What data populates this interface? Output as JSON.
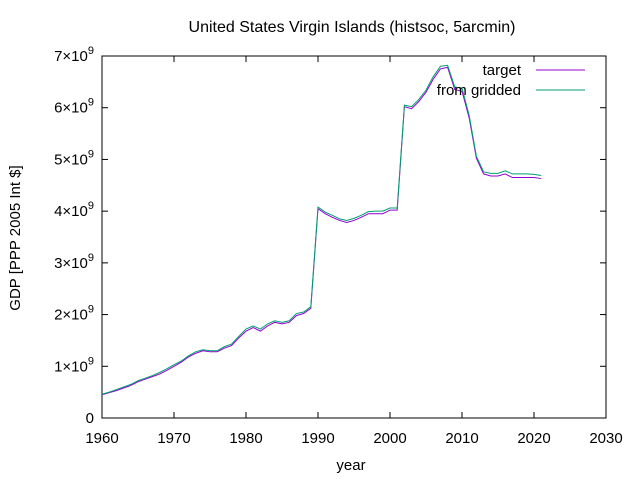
{
  "chart_data": {
    "type": "line",
    "title": "United States Virgin Islands (histsoc, 5arcmin)",
    "xlabel": "year",
    "ylabel": "GDP [PPP 2005 Int $]",
    "xlim": [
      1960,
      2030
    ],
    "ylim": [
      0,
      7000000000
    ],
    "xticks": [
      "1960",
      "1970",
      "1980",
      "1990",
      "2000",
      "2010",
      "2020",
      "2030"
    ],
    "yticks": [
      "0",
      "1×10^9",
      "2×10^9",
      "3×10^9",
      "4×10^9",
      "5×10^9",
      "6×10^9",
      "7×10^9"
    ],
    "legend_position": "top-right",
    "grid": false,
    "x": [
      1960,
      1961,
      1962,
      1963,
      1964,
      1965,
      1966,
      1967,
      1968,
      1969,
      1970,
      1971,
      1972,
      1973,
      1974,
      1975,
      1976,
      1977,
      1978,
      1979,
      1980,
      1981,
      1982,
      1983,
      1984,
      1985,
      1986,
      1987,
      1988,
      1989,
      1990,
      1991,
      1992,
      1993,
      1994,
      1995,
      1996,
      1997,
      1998,
      1999,
      2000,
      2001,
      2002,
      2003,
      2004,
      2005,
      2006,
      2007,
      2008,
      2009,
      2010,
      2011,
      2012,
      2013,
      2014,
      2015,
      2016,
      2017,
      2018,
      2019,
      2020,
      2021
    ],
    "series": [
      {
        "name": "target",
        "color": "#9400d3",
        "values": [
          450000000.0,
          490000000.0,
          530000000.0,
          580000000.0,
          630000000.0,
          700000000.0,
          750000000.0,
          800000000.0,
          850000000.0,
          920000000.0,
          1000000000.0,
          1080000000.0,
          1180000000.0,
          1250000000.0,
          1300000000.0,
          1280000000.0,
          1280000000.0,
          1350000000.0,
          1400000000.0,
          1550000000.0,
          1680000000.0,
          1750000000.0,
          1680000000.0,
          1780000000.0,
          1850000000.0,
          1820000000.0,
          1850000000.0,
          1980000000.0,
          2020000000.0,
          2120000000.0,
          4050000000.0,
          3950000000.0,
          3880000000.0,
          3820000000.0,
          3780000000.0,
          3820000000.0,
          3880000000.0,
          3950000000.0,
          3950000000.0,
          3950000000.0,
          4020000000.0,
          4020000000.0,
          6020000000.0,
          5980000000.0,
          6120000000.0,
          6300000000.0,
          6550000000.0,
          6750000000.0,
          6780000000.0,
          6350000000.0,
          6320000000.0,
          5800000000.0,
          5020000000.0,
          4720000000.0,
          4680000000.0,
          4680000000.0,
          4720000000.0,
          4650000000.0,
          4650000000.0,
          4650000000.0,
          4650000000.0,
          4630000000.0
        ]
      },
      {
        "name": "from gridded",
        "color": "#009e73",
        "values": [
          460000000.0,
          500000000.0,
          550000000.0,
          600000000.0,
          650000000.0,
          720000000.0,
          770000000.0,
          820000000.0,
          880000000.0,
          950000000.0,
          1030000000.0,
          1100000000.0,
          1200000000.0,
          1280000000.0,
          1320000000.0,
          1300000000.0,
          1300000000.0,
          1380000000.0,
          1430000000.0,
          1580000000.0,
          1720000000.0,
          1780000000.0,
          1720000000.0,
          1820000000.0,
          1880000000.0,
          1850000000.0,
          1880000000.0,
          2020000000.0,
          2050000000.0,
          2150000000.0,
          4080000000.0,
          3980000000.0,
          3920000000.0,
          3850000000.0,
          3820000000.0,
          3860000000.0,
          3920000000.0,
          3990000000.0,
          4000000000.0,
          4000000000.0,
          4060000000.0,
          4060000000.0,
          6050000000.0,
          6020000000.0,
          6160000000.0,
          6340000000.0,
          6600000000.0,
          6800000000.0,
          6820000000.0,
          6400000000.0,
          6380000000.0,
          5850000000.0,
          5060000000.0,
          4760000000.0,
          4730000000.0,
          4730000000.0,
          4780000000.0,
          4720000000.0,
          4720000000.0,
          4720000000.0,
          4710000000.0,
          4690000000.0
        ]
      }
    ]
  }
}
